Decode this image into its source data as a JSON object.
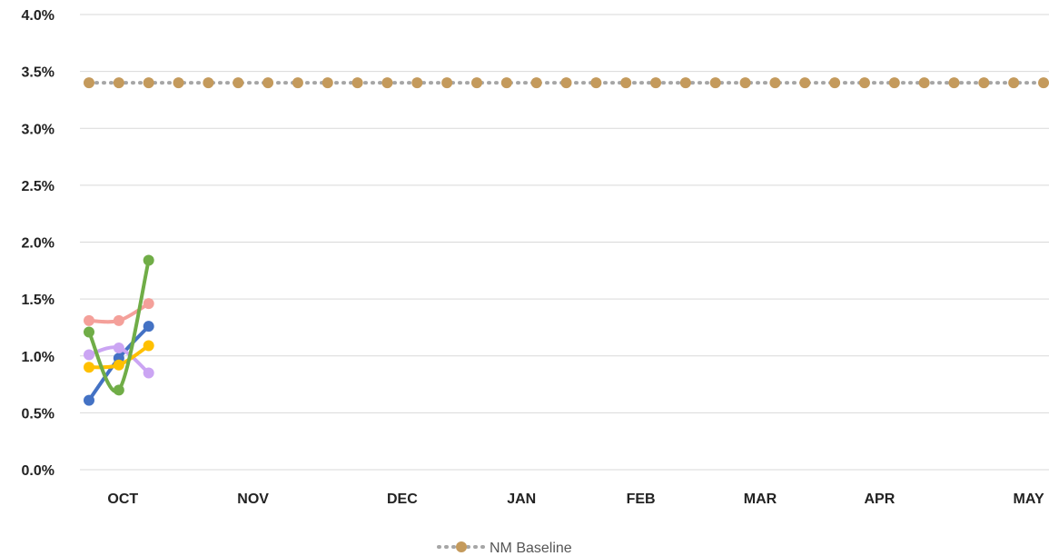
{
  "chart_data": {
    "type": "line",
    "title": "",
    "xlabel": "",
    "ylabel": "",
    "ylim": [
      0,
      0.04
    ],
    "y_ticks": [
      "0.0%",
      "0.5%",
      "1.0%",
      "1.5%",
      "2.0%",
      "2.5%",
      "3.0%",
      "3.5%",
      "4.0%"
    ],
    "x_tick_labels": [
      "OCT",
      "NOV",
      "DEC",
      "JAN",
      "FEB",
      "MAR",
      "APR",
      "MAY"
    ],
    "x_tick_positions": [
      1.5,
      5.5,
      10.5,
      14.5,
      18.5,
      22.5,
      26.5,
      31.5
    ],
    "x_range": [
      0,
      33
    ],
    "grid": true,
    "legend": {
      "placement": "bottom",
      "entries": [
        "NM Baseline"
      ]
    },
    "baseline": {
      "name": "NM Baseline",
      "value": 0.034,
      "color": "#C49A5C",
      "x": [
        0,
        1,
        2,
        3,
        4,
        5,
        6,
        7,
        8,
        9,
        10,
        11,
        12,
        13,
        14,
        15,
        16,
        17,
        18,
        19,
        20,
        21,
        22,
        23,
        24,
        25,
        26,
        27,
        28,
        29,
        30,
        31,
        32
      ]
    },
    "series": [
      {
        "color": "#F4A09A",
        "x": [
          0,
          1,
          2
        ],
        "values": [
          0.0131,
          0.0131,
          0.0146
        ]
      },
      {
        "color": "#4472C4",
        "x": [
          0,
          1,
          2
        ],
        "values": [
          0.0061,
          0.0098,
          0.0126
        ]
      },
      {
        "color": "#CBA5F3",
        "x": [
          0,
          1,
          2
        ],
        "values": [
          0.0101,
          0.0107,
          0.0085
        ]
      },
      {
        "color": "#FFC000",
        "x": [
          0,
          1,
          2
        ],
        "values": [
          0.009,
          0.0092,
          0.0109
        ]
      },
      {
        "color": "#70AD47",
        "x": [
          0,
          1,
          2
        ],
        "values": [
          0.0121,
          0.007,
          0.0184
        ]
      }
    ]
  }
}
